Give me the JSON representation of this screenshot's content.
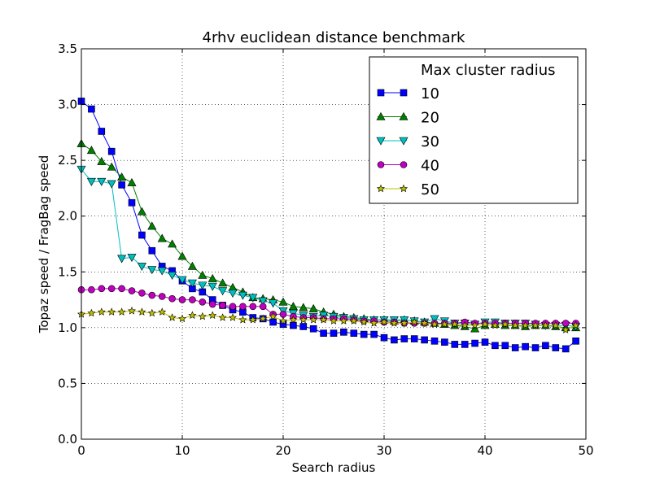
{
  "chart_data": {
    "type": "line",
    "title": "4rhv euclidean distance benchmark",
    "xlabel": "Search radius",
    "ylabel": "Topaz speed / FragBag speed",
    "xlim": [
      0,
      50
    ],
    "ylim": [
      0.0,
      3.5
    ],
    "xticks": [
      0,
      10,
      20,
      30,
      40,
      50
    ],
    "yticks": [
      0.0,
      0.5,
      1.0,
      1.5,
      2.0,
      2.5,
      3.0,
      3.5
    ],
    "grid": true,
    "legend": {
      "title": "Max cluster radius",
      "placement": "top-right"
    },
    "x": [
      0,
      1,
      2,
      3,
      4,
      5,
      6,
      7,
      8,
      9,
      10,
      11,
      12,
      13,
      14,
      15,
      16,
      17,
      18,
      19,
      20,
      21,
      22,
      23,
      24,
      25,
      26,
      27,
      28,
      29,
      30,
      31,
      32,
      33,
      34,
      35,
      36,
      37,
      38,
      39,
      40,
      41,
      42,
      43,
      44,
      45,
      46,
      47,
      48,
      49
    ],
    "series": [
      {
        "name": "10",
        "color": "#0000ff",
        "marker": "square",
        "values": [
          3.03,
          2.96,
          2.76,
          2.58,
          2.28,
          2.12,
          1.83,
          1.69,
          1.55,
          1.51,
          1.42,
          1.35,
          1.32,
          1.25,
          1.2,
          1.16,
          1.14,
          1.09,
          1.08,
          1.05,
          1.03,
          1.02,
          1.01,
          0.99,
          0.95,
          0.95,
          0.96,
          0.95,
          0.94,
          0.94,
          0.91,
          0.89,
          0.9,
          0.9,
          0.89,
          0.88,
          0.87,
          0.85,
          0.85,
          0.86,
          0.87,
          0.84,
          0.84,
          0.82,
          0.83,
          0.82,
          0.84,
          0.82,
          0.81,
          0.88
        ]
      },
      {
        "name": "20",
        "color": "#008000",
        "marker": "triangle-up",
        "values": [
          2.65,
          2.59,
          2.49,
          2.44,
          2.35,
          2.3,
          2.04,
          1.91,
          1.8,
          1.75,
          1.64,
          1.55,
          1.47,
          1.44,
          1.4,
          1.36,
          1.32,
          1.27,
          1.26,
          1.25,
          1.23,
          1.19,
          1.18,
          1.17,
          1.14,
          1.12,
          1.1,
          1.09,
          1.08,
          1.07,
          1.07,
          1.06,
          1.07,
          1.06,
          1.05,
          1.04,
          1.03,
          1.02,
          1.01,
          0.99,
          1.02,
          1.03,
          1.02,
          1.02,
          1.01,
          1.02,
          1.02,
          1.01,
          1.0,
          1.0
        ]
      },
      {
        "name": "30",
        "color": "#00bfbf",
        "marker": "triangle-down",
        "values": [
          2.42,
          2.31,
          2.31,
          2.29,
          1.62,
          1.63,
          1.55,
          1.52,
          1.51,
          1.47,
          1.43,
          1.4,
          1.38,
          1.37,
          1.33,
          1.31,
          1.29,
          1.27,
          1.24,
          1.22,
          1.15,
          1.13,
          1.11,
          1.1,
          1.11,
          1.1,
          1.09,
          1.08,
          1.07,
          1.07,
          1.07,
          1.07,
          1.07,
          1.06,
          1.05,
          1.08,
          1.06,
          1.04,
          1.04,
          1.03,
          1.05,
          1.05,
          1.04,
          1.04,
          1.04,
          1.03,
          1.02,
          1.02,
          1.02,
          1.01
        ]
      },
      {
        "name": "40",
        "color": "#bf00bf",
        "marker": "circle",
        "values": [
          1.34,
          1.34,
          1.35,
          1.35,
          1.35,
          1.33,
          1.31,
          1.29,
          1.28,
          1.26,
          1.25,
          1.25,
          1.23,
          1.21,
          1.2,
          1.19,
          1.19,
          1.19,
          1.19,
          1.12,
          1.12,
          1.1,
          1.09,
          1.09,
          1.08,
          1.08,
          1.08,
          1.07,
          1.06,
          1.06,
          1.05,
          1.05,
          1.04,
          1.04,
          1.04,
          1.04,
          1.04,
          1.04,
          1.05,
          1.04,
          1.04,
          1.04,
          1.04,
          1.04,
          1.04,
          1.04,
          1.04,
          1.04,
          1.04,
          1.04
        ]
      },
      {
        "name": "50",
        "color": "#bfbf00",
        "marker": "star",
        "values": [
          1.12,
          1.13,
          1.14,
          1.14,
          1.14,
          1.15,
          1.14,
          1.13,
          1.14,
          1.09,
          1.08,
          1.11,
          1.1,
          1.11,
          1.09,
          1.09,
          1.07,
          1.07,
          1.08,
          1.1,
          1.06,
          1.07,
          1.07,
          1.07,
          1.07,
          1.06,
          1.06,
          1.06,
          1.05,
          1.04,
          1.05,
          1.04,
          1.04,
          1.05,
          1.04,
          1.03,
          1.03,
          1.03,
          1.02,
          1.02,
          1.03,
          1.02,
          1.03,
          1.02,
          1.02,
          1.02,
          1.02,
          1.02,
          0.98,
          1.02
        ]
      }
    ]
  }
}
